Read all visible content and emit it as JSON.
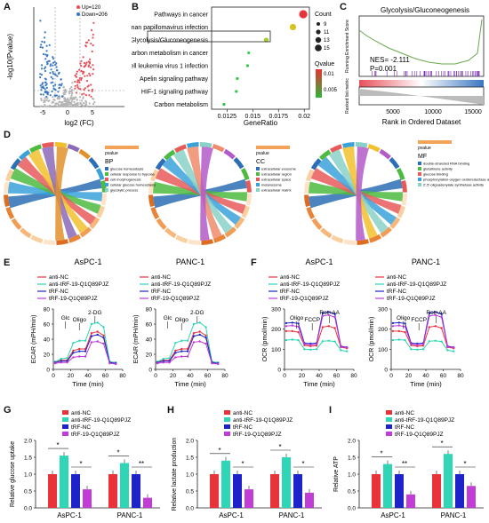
{
  "labels": {
    "A": "A",
    "B": "B",
    "C": "C",
    "D": "D",
    "E": "E",
    "F": "F",
    "G": "G",
    "H": "H",
    "I": "I"
  },
  "A": {
    "legend_up": "Up=120",
    "legend_down": "Down=206",
    "xlabel": "log2 (FC)",
    "ylabel": "-log10(Pvalue)",
    "xticks": [
      "-5",
      "0",
      "5"
    ],
    "yticks": [
      "0",
      "2",
      "4",
      "6",
      "8",
      "10",
      "12"
    ],
    "colors": {
      "up": "#e8505b",
      "down": "#3a77c2",
      "ns": "#b5b5b5"
    }
  },
  "B": {
    "xlabel": "GeneRatio",
    "xticks": [
      "0.0125",
      "0.015",
      "0.0175",
      "0.02"
    ],
    "legend_count_title": "Count",
    "count_vals": [
      "9",
      "11",
      "13",
      "15"
    ],
    "legend_q_title": "Qvalue",
    "q_vals": [
      "0.01",
      "0.005"
    ],
    "chart_data": {
      "type": "scatter",
      "categories": [
        "Pathways in cancer",
        "Human papillomavirus infection",
        "Glycolysis/Gluconeogenesis",
        "Central carbon metabolism in cancer",
        "Human T-cell leukemia virus 1 infection",
        "Apelin signaling pathway",
        "HIF-1 signaling pathway",
        "Carbon metabolism"
      ],
      "x": [
        0.0199,
        0.0189,
        0.0163,
        0.0146,
        0.0145,
        0.0135,
        0.0134,
        0.0122
      ],
      "count": [
        15,
        13,
        11,
        9,
        9,
        9,
        9,
        9
      ],
      "xlim": [
        0.011,
        0.0205
      ],
      "highlight": "Glycolysis/Gluconeogenesis"
    }
  },
  "C": {
    "title": "Glycolysis/Gluconeogenesis",
    "nes": "NES= -2.111",
    "p": "P=0.001",
    "xlabel": "Rank in Ordered Dataset",
    "xticks": [
      "5000",
      "10000",
      "15000"
    ],
    "ylabel_top": "Running Enrichment Score",
    "ylabel_bottom": "Ranked list metric"
  },
  "D": {
    "bp_title": "BP",
    "cc_title": "CC",
    "mf_title": "MF",
    "pvalue": "pvalue",
    "bp_terms": [
      "glucose homeostasis",
      "cellular response to hypoxia",
      "cell morphogenesis",
      "cellular glucose homeostasis",
      "glycolytic process"
    ],
    "cc_terms": [
      "extracellular exosome",
      "extracellular region",
      "extracellular space",
      "melanosome",
      "extracellular matrix"
    ],
    "mf_terms": [
      "double-stranded RNA binding",
      "glutathione activity",
      "glucose binding",
      "phosphorylation-oxygen oxidoreductase activity",
      "2',5'-oligoadenylate synthetase activity"
    ]
  },
  "E": {
    "titles": [
      "AsPC-1",
      "PANC-1"
    ],
    "ylabel": "ECAR (mPH/min)",
    "xlabel": "Time (min)",
    "xticks": [
      "0",
      "20",
      "40",
      "60",
      "80"
    ],
    "yticks": [
      "0",
      "20",
      "40",
      "60",
      "80"
    ],
    "annots": [
      "Glc",
      "Oligo",
      "2-DG"
    ],
    "legend": [
      "anti-NC",
      "anti-tRF-19-Q1Q89PJZ",
      "tRF-NC",
      "tRF-19-Q1Q89PJZ"
    ],
    "colors": [
      "#e8333b",
      "#2fd6b5",
      "#1d22c9",
      "#c23cd6"
    ]
  },
  "F": {
    "titles": [
      "AsPC-1",
      "PANC-1"
    ],
    "ylabel": "OCR (pmol/min)",
    "xlabel": "Time (min)",
    "xticks": [
      "0",
      "20",
      "40",
      "60",
      "80"
    ],
    "yticks": [
      "0",
      "100",
      "200",
      "300"
    ],
    "annots": [
      "Oligo",
      "FCCP",
      "Rot+AA"
    ],
    "legend": [
      "anti-NC",
      "anti-tRF-19-Q1Q89PJZ",
      "tRF-NC",
      "tRF-19-Q1Q89PJZ"
    ]
  },
  "G": {
    "ylabel": "Relative glucose uptake",
    "yticks": [
      "0.0",
      "0.5",
      "1.0",
      "1.5",
      "2.0"
    ],
    "categories": [
      "AsPC-1",
      "PANC-1"
    ],
    "legend": [
      "anti-NC",
      "anti-tRF-19-Q1Q89PJZ",
      "tRF-NC",
      "tRF-19-Q1Q89PJZ"
    ],
    "chart_data": {
      "type": "bar",
      "categories": [
        "AsPC-1",
        "PANC-1"
      ],
      "series": [
        {
          "name": "anti-NC",
          "values": [
            1.0,
            1.0
          ]
        },
        {
          "name": "anti-tRF-19-Q1Q89PJZ",
          "values": [
            1.55,
            1.33
          ]
        },
        {
          "name": "tRF-NC",
          "values": [
            1.0,
            1.0
          ]
        },
        {
          "name": "tRF-19-Q1Q89PJZ",
          "values": [
            0.55,
            0.3
          ]
        }
      ],
      "ylim": [
        0,
        2.0
      ],
      "sig": [
        "*",
        "*",
        "*",
        "**"
      ]
    }
  },
  "H": {
    "ylabel": "Relative lactate production",
    "yticks": [
      "0.0",
      "0.5",
      "1.0",
      "1.5",
      "2.0"
    ],
    "categories": [
      "AsPC-1",
      "PANC-1"
    ],
    "legend": [
      "anti-NC",
      "anti-tRF-19-Q1Q89PJZ",
      "tRF-NC",
      "tRF-19-Q1Q89PJZ"
    ],
    "chart_data": {
      "type": "bar",
      "categories": [
        "AsPC-1",
        "PANC-1"
      ],
      "series": [
        {
          "name": "anti-NC",
          "values": [
            1.0,
            1.0
          ]
        },
        {
          "name": "anti-tRF-19-Q1Q89PJZ",
          "values": [
            1.4,
            1.5
          ]
        },
        {
          "name": "tRF-NC",
          "values": [
            1.0,
            1.0
          ]
        },
        {
          "name": "tRF-19-Q1Q89PJZ",
          "values": [
            0.55,
            0.45
          ]
        }
      ],
      "ylim": [
        0,
        2.0
      ],
      "sig": [
        "*",
        "*",
        "*",
        "*"
      ]
    }
  },
  "I": {
    "ylabel": "Relative ATP",
    "yticks": [
      "0.0",
      "0.5",
      "1.0",
      "1.5",
      "2.0"
    ],
    "categories": [
      "AsPC-1",
      "PANC-1"
    ],
    "legend": [
      "anti-NC",
      "anti-tRF-19-Q1Q89PJZ",
      "tRF-NC",
      "tRF-19-Q1Q89PJZ"
    ],
    "chart_data": {
      "type": "bar",
      "categories": [
        "AsPC-1",
        "PANC-1"
      ],
      "series": [
        {
          "name": "anti-NC",
          "values": [
            1.0,
            1.0
          ]
        },
        {
          "name": "anti-tRF-19-Q1Q89PJZ",
          "values": [
            1.3,
            1.6
          ]
        },
        {
          "name": "tRF-NC",
          "values": [
            1.0,
            1.0
          ]
        },
        {
          "name": "tRF-19-Q1Q89PJZ",
          "values": [
            0.4,
            0.65
          ]
        }
      ],
      "ylim": [
        0,
        2.0
      ],
      "sig": [
        "*",
        "**",
        "*",
        "*"
      ]
    }
  }
}
